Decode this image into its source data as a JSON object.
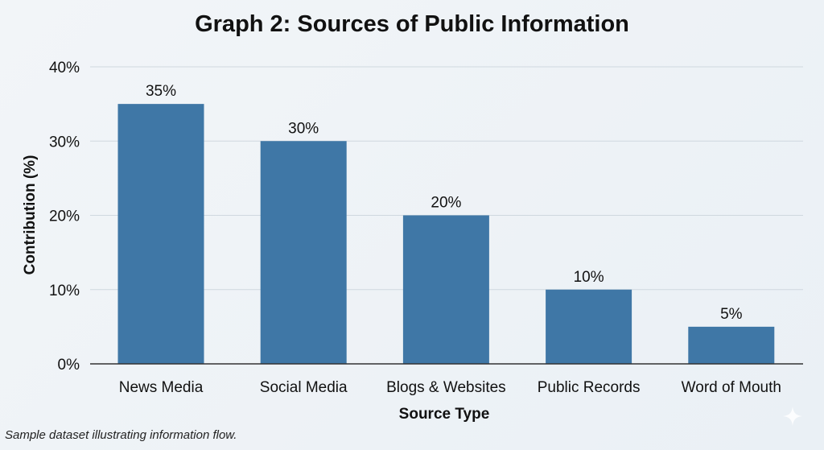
{
  "chart_data": {
    "type": "bar",
    "title": "Graph 2: Sources of Public Information",
    "xlabel": "Source Type",
    "ylabel": "Contribution (%)",
    "categories": [
      "News Media",
      "Social Media",
      "Blogs & Websites",
      "Public Records",
      "Word of Mouth"
    ],
    "values": [
      35,
      30,
      20,
      10,
      5
    ],
    "data_labels": [
      "35%",
      "30%",
      "20%",
      "10%",
      "5%"
    ],
    "ylim": [
      0,
      40
    ],
    "yticks": [
      0,
      10,
      20,
      30,
      40
    ],
    "ytick_labels": [
      "0%",
      "10%",
      "20%",
      "30%",
      "40%"
    ],
    "grid": true,
    "bar_color": "#3f77a6"
  },
  "caption": "Sample dataset illustrating information flow."
}
